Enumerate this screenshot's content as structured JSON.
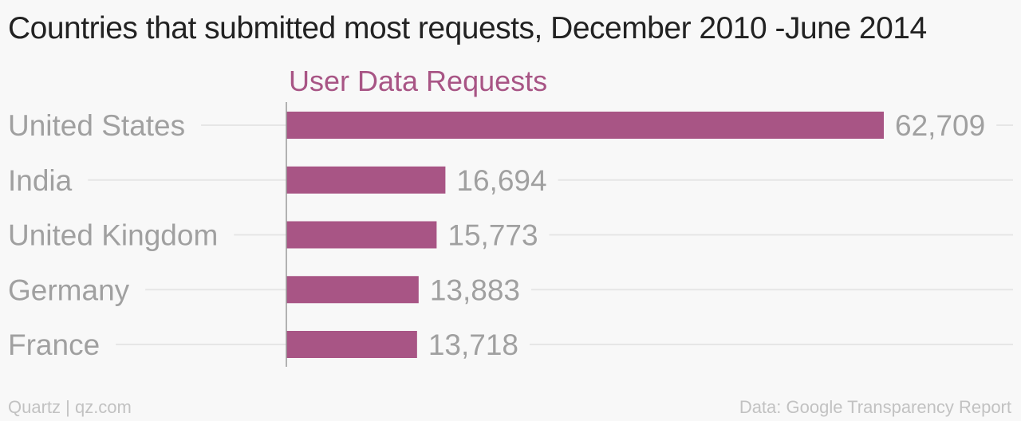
{
  "chart_data": {
    "type": "bar",
    "orientation": "horizontal",
    "title": "Countries that submitted most requests, December 2010 -June 2014",
    "series": [
      {
        "name": "User Data Requests",
        "color": "#a85585",
        "values": [
          62709,
          16694,
          15773,
          13883,
          13718
        ],
        "labels": [
          "62,709",
          "16,694",
          "15,773",
          "13,883",
          "13,718"
        ]
      }
    ],
    "categories": [
      "United States",
      "India",
      "United Kingdom",
      "Germany",
      "France"
    ],
    "xlim": [
      0,
      62709
    ],
    "grid": true,
    "legend": "top"
  },
  "footer": {
    "source_left": "Quartz | qz.com",
    "source_right": "Data: Google Transparency Report"
  },
  "colors": {
    "bar": "#a85585",
    "series_label": "#a85585",
    "category_label": "#a0a0a0",
    "value_label": "#a0a0a0",
    "gridline": "#e6e6e6",
    "axis": "#9a9a9a"
  }
}
